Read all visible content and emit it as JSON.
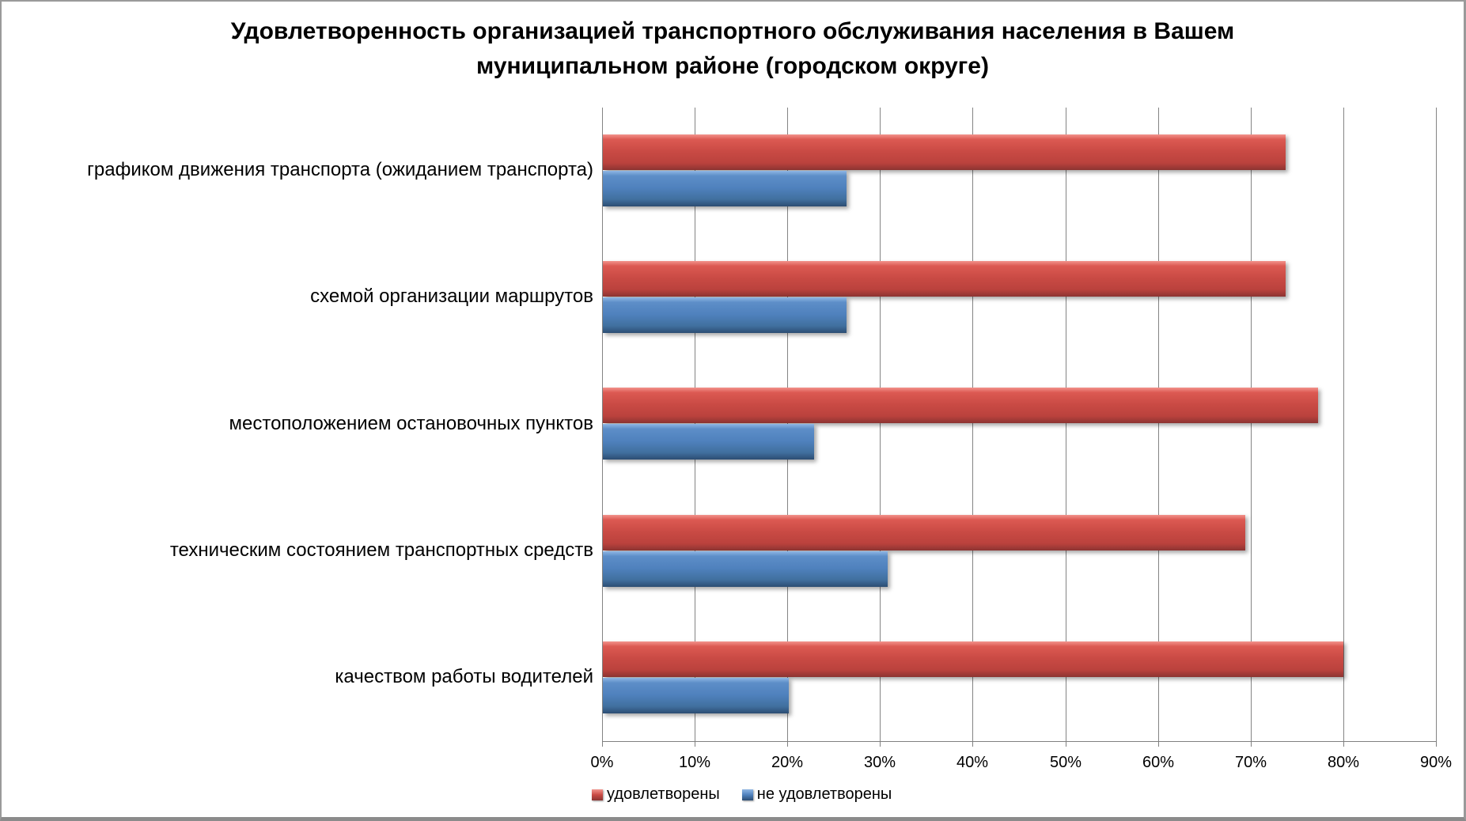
{
  "chart_data": {
    "type": "bar",
    "orientation": "horizontal",
    "title": "Удовлетворенность организацией транспортного обслуживания населения в Вашем муниципальном районе (городском округе)",
    "categories": [
      "графиком движения транспорта (ожиданием транспорта)",
      "схемой организации маршрутов",
      "местоположением остановочных пунктов",
      "техническим состоянием транспортных средств",
      "качеством работы водителей"
    ],
    "series": [
      {
        "name": "удовлетворены",
        "color": "#C0504D",
        "values": [
          73.7,
          73.7,
          77.2,
          69.3,
          79.9
        ]
      },
      {
        "name": "не удовлетворены",
        "color": "#4F81BD",
        "values": [
          26.3,
          26.3,
          22.8,
          30.7,
          20.1
        ]
      }
    ],
    "xlim": [
      0,
      90
    ],
    "x_ticks": [
      "0%",
      "10%",
      "20%",
      "30%",
      "40%",
      "50%",
      "60%",
      "70%",
      "80%",
      "90%"
    ],
    "grid": true,
    "legend_position": "bottom",
    "gridline_color": "#848484",
    "frame_border_color": "#8b8b8b"
  }
}
